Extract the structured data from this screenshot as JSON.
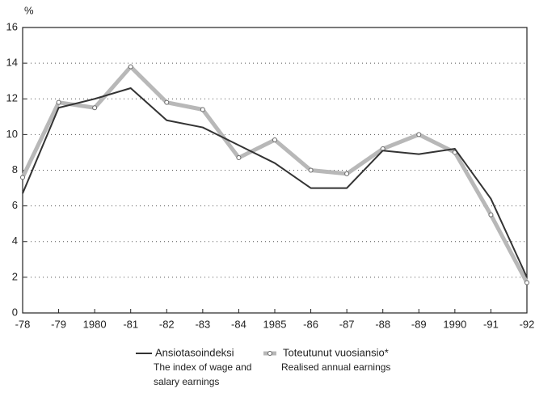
{
  "chart_data": {
    "type": "line",
    "ylabel": "%",
    "categories": [
      "-78",
      "-79",
      "1980",
      "-81",
      "-82",
      "-83",
      "-84",
      "1985",
      "-86",
      "-87",
      "-88",
      "-89",
      "1990",
      "-91",
      "-92"
    ],
    "series": [
      {
        "name": "Ansiotasoindeksi",
        "description": [
          "The index of wage and",
          "salary earnings"
        ],
        "color": "#333333",
        "values": [
          6.7,
          11.5,
          12.0,
          12.6,
          10.8,
          10.4,
          9.4,
          8.4,
          7.0,
          7.0,
          9.1,
          8.9,
          9.2,
          6.4,
          2.0
        ]
      },
      {
        "name": "Toteutunut vuosiansio*",
        "description": [
          "Realised annual earnings"
        ],
        "color": "#b8b8b8",
        "values": [
          7.6,
          11.8,
          11.5,
          13.8,
          11.8,
          11.4,
          8.7,
          9.7,
          8.0,
          7.8,
          9.2,
          10.0,
          9.0,
          5.5,
          1.7
        ]
      }
    ],
    "ylim": [
      0,
      16
    ],
    "yticks": [
      0,
      2,
      4,
      6,
      8,
      10,
      12,
      14,
      16
    ],
    "grid": true
  }
}
